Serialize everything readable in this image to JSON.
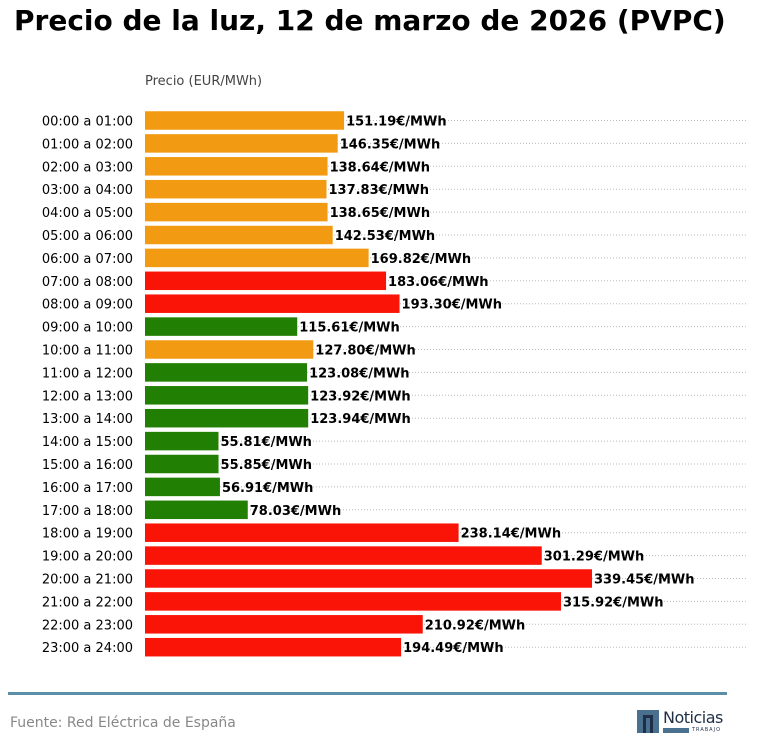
{
  "title": "Precio de la luz, 12 de marzo de 2026 (PVPC)",
  "source": "Fuente: Red Eléctrica de España",
  "logo": {
    "word": "Noticias",
    "sub": "TRABAJO",
    "icon": "logo-n-icon"
  },
  "colors": {
    "high": "#fa1408",
    "mid": "#f29b12",
    "low": "#217f03",
    "grid": "#bbbbbb",
    "divider": "#5b8fa8"
  },
  "chart_data": {
    "type": "bar",
    "orientation": "horizontal",
    "ylabel": "Precio (EUR/MWh)",
    "value_suffix": "€/MWh",
    "grid": "horizontal dotted",
    "xlim": [
      0,
      340
    ],
    "categories": [
      "00:00 a 01:00",
      "01:00 a 02:00",
      "02:00 a 03:00",
      "03:00 a 04:00",
      "04:00 a 05:00",
      "05:00 a 06:00",
      "06:00 a 07:00",
      "07:00 a 08:00",
      "08:00 a 09:00",
      "09:00 a 10:00",
      "10:00 a 11:00",
      "11:00 a 12:00",
      "12:00 a 13:00",
      "13:00 a 14:00",
      "14:00 a 15:00",
      "15:00 a 16:00",
      "16:00 a 17:00",
      "17:00 a 18:00",
      "18:00 a 19:00",
      "19:00 a 20:00",
      "20:00 a 21:00",
      "21:00 a 22:00",
      "22:00 a 23:00",
      "23:00 a 24:00"
    ],
    "values": [
      151.19,
      146.35,
      138.64,
      137.83,
      138.65,
      142.53,
      169.82,
      183.06,
      193.3,
      115.61,
      127.8,
      123.08,
      123.92,
      123.94,
      55.81,
      55.85,
      56.91,
      78.03,
      238.14,
      301.29,
      339.45,
      315.92,
      210.92,
      194.49
    ],
    "value_labels": [
      "151.19€/MWh",
      "146.35€/MWh",
      "138.64€/MWh",
      "137.83€/MWh",
      "138.65€/MWh",
      "142.53€/MWh",
      "169.82€/MWh",
      "183.06€/MWh",
      "193.30€/MWh",
      "115.61€/MWh",
      "127.80€/MWh",
      "123.08€/MWh",
      "123.92€/MWh",
      "123.94€/MWh",
      "55.81€/MWh",
      "55.85€/MWh",
      "56.91€/MWh",
      "78.03€/MWh",
      "238.14€/MWh",
      "301.29€/MWh",
      "339.45€/MWh",
      "315.92€/MWh",
      "210.92€/MWh",
      "194.49€/MWh"
    ],
    "levels": [
      "mid",
      "mid",
      "mid",
      "mid",
      "mid",
      "mid",
      "mid",
      "high",
      "high",
      "low",
      "mid",
      "low",
      "low",
      "low",
      "low",
      "low",
      "low",
      "low",
      "high",
      "high",
      "high",
      "high",
      "high",
      "high"
    ]
  }
}
